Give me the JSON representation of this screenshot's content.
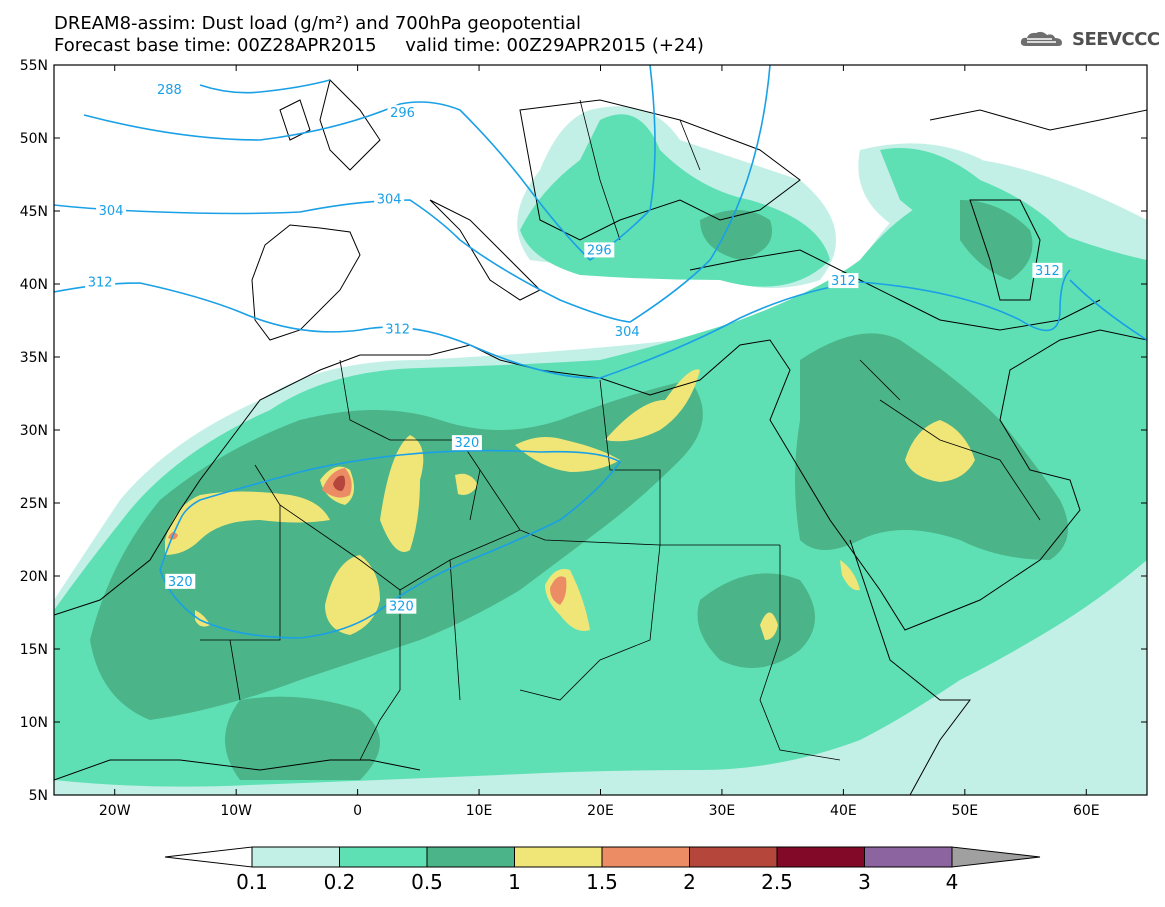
{
  "title": {
    "line1": "DREAM8-assim: Dust load (g/m²) and 700hPa geopotential",
    "line2": "Forecast base time: 00Z28APR2015     valid time: 00Z29APR2015 (+24)"
  },
  "logo": {
    "text": "SEEVCCC",
    "icon": "cloud-logo-icon"
  },
  "map": {
    "lon_range": [
      -25,
      65
    ],
    "lat_range": [
      5,
      55
    ],
    "x_ticks": [
      {
        "lon": -20,
        "label": "20W"
      },
      {
        "lon": -10,
        "label": "10W"
      },
      {
        "lon": 0,
        "label": "0"
      },
      {
        "lon": 10,
        "label": "10E"
      },
      {
        "lon": 20,
        "label": "20E"
      },
      {
        "lon": 30,
        "label": "30E"
      },
      {
        "lon": 40,
        "label": "40E"
      },
      {
        "lon": 50,
        "label": "50E"
      },
      {
        "lon": 60,
        "label": "60E"
      }
    ],
    "y_ticks": [
      {
        "lat": 55,
        "label": "55N"
      },
      {
        "lat": 50,
        "label": "50N"
      },
      {
        "lat": 45,
        "label": "45N"
      },
      {
        "lat": 40,
        "label": "40N"
      },
      {
        "lat": 35,
        "label": "35N"
      },
      {
        "lat": 30,
        "label": "30N"
      },
      {
        "lat": 25,
        "label": "25N"
      },
      {
        "lat": 20,
        "label": "20N"
      },
      {
        "lat": 15,
        "label": "15N"
      },
      {
        "lat": 10,
        "label": "10N"
      },
      {
        "lat": 5,
        "label": "5N"
      }
    ],
    "contour_color": "#1aa0e6",
    "contour_labels": [
      {
        "text": "288",
        "lon": -15.5,
        "lat": 53.3
      },
      {
        "text": "296",
        "lon": 3.7,
        "lat": 51.7
      },
      {
        "text": "304",
        "lon": -20.3,
        "lat": 45.0
      },
      {
        "text": "304",
        "lon": 2.6,
        "lat": 45.8
      },
      {
        "text": "312",
        "lon": -21.2,
        "lat": 40.1
      },
      {
        "text": "312",
        "lon": 3.3,
        "lat": 36.9
      },
      {
        "text": "312",
        "lon": 40.0,
        "lat": 40.2
      },
      {
        "text": "312",
        "lon": 56.8,
        "lat": 40.9
      },
      {
        "text": "296",
        "lon": 19.9,
        "lat": 42.3
      },
      {
        "text": "304",
        "lon": 22.2,
        "lat": 36.7
      },
      {
        "text": "320",
        "lon": 9.0,
        "lat": 29.1
      },
      {
        "text": "320",
        "lon": -14.6,
        "lat": 19.6
      },
      {
        "text": "320",
        "lon": 3.6,
        "lat": 17.9
      }
    ]
  },
  "colorbar": {
    "levels": [
      "0.1",
      "0.2",
      "0.5",
      "1",
      "1.5",
      "2",
      "2.5",
      "3",
      "4"
    ],
    "colors": [
      "#c3f0e6",
      "#5fe0b4",
      "#4bb489",
      "#f0e678",
      "#eb8c64",
      "#b4463c",
      "#820a28",
      "#8c64a0"
    ],
    "under_color": "#ffffff",
    "over_color": "#a0a0a0"
  }
}
